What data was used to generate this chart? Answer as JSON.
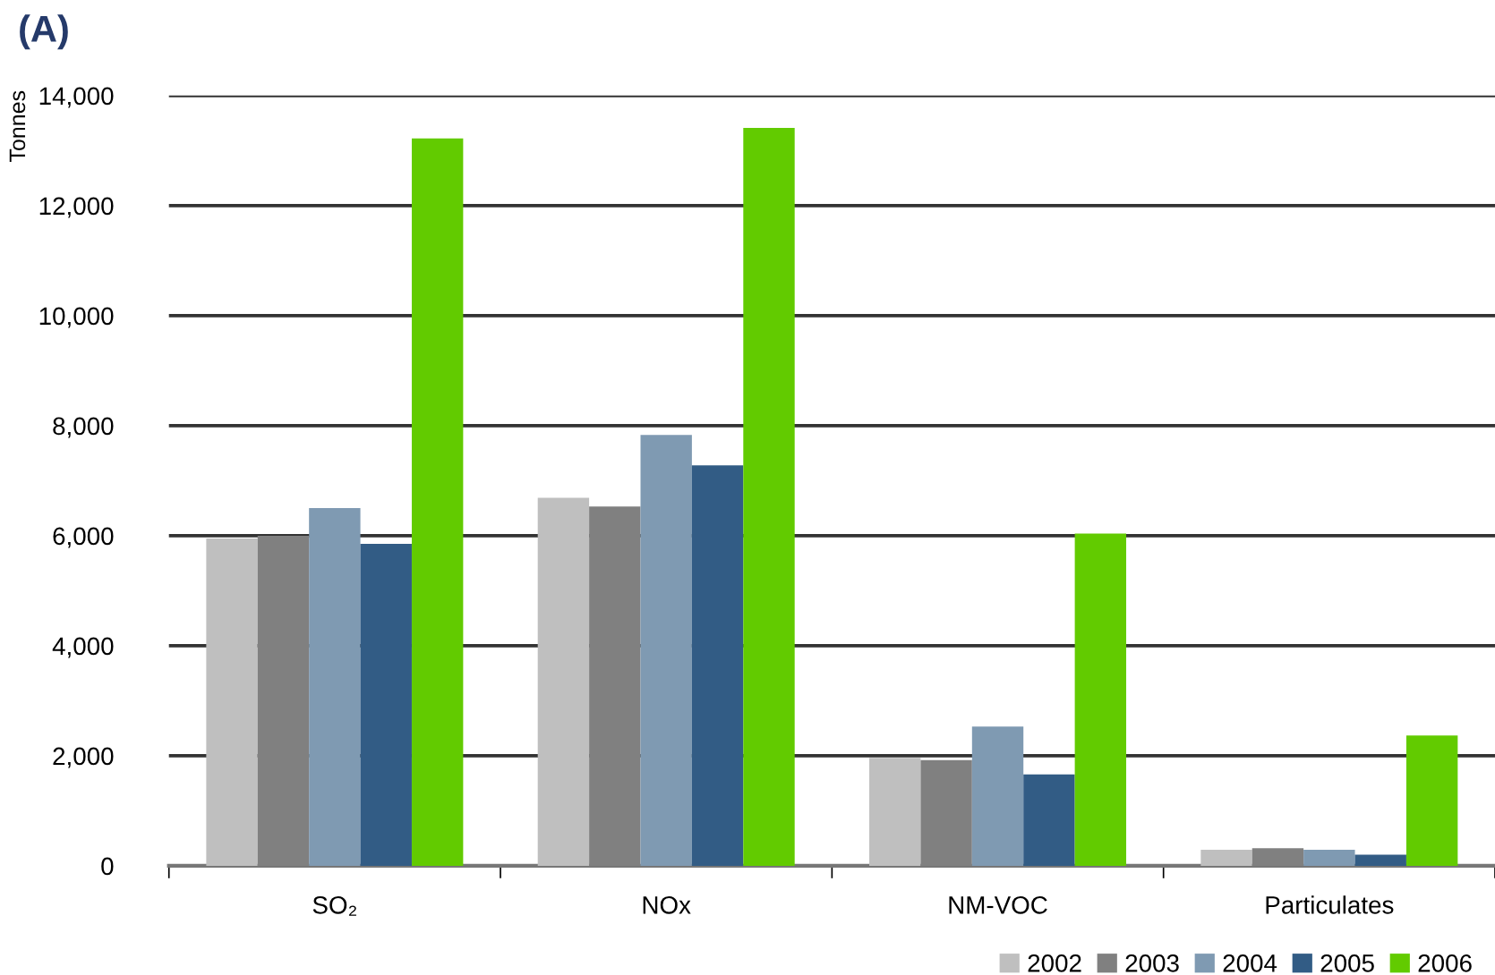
{
  "chart_data": {
    "type": "bar",
    "title": "(A)",
    "ylabel": "Tonnes",
    "categories": [
      "SO₂",
      "NOx",
      "NM-VOC",
      "Particulates"
    ],
    "series": [
      {
        "name": "2002",
        "color": "#bfbfbf",
        "values": [
          5950,
          6690,
          1960,
          290
        ]
      },
      {
        "name": "2003",
        "color": "#808080",
        "values": [
          6000,
          6530,
          1920,
          320
        ]
      },
      {
        "name": "2004",
        "color": "#7f9ab2",
        "values": [
          6500,
          7830,
          2530,
          290
        ]
      },
      {
        "name": "2005",
        "color": "#325c85",
        "values": [
          5850,
          7280,
          1660,
          200
        ]
      },
      {
        "name": "2006",
        "color": "#62cb00",
        "values": [
          13220,
          13410,
          6040,
          2370
        ]
      }
    ],
    "ylim": [
      0,
      14000
    ],
    "yticks": [
      {
        "value": 0,
        "label": "0"
      },
      {
        "value": 2000,
        "label": "2,000"
      },
      {
        "value": 4000,
        "label": "4,000"
      },
      {
        "value": 6000,
        "label": "6,000"
      },
      {
        "value": 8000,
        "label": "8,000"
      },
      {
        "value": 10000,
        "label": "10,000"
      },
      {
        "value": 12000,
        "label": "12,000"
      },
      {
        "value": 14000,
        "label": "14,000"
      }
    ],
    "grid": "y",
    "legend": "bottom right"
  }
}
